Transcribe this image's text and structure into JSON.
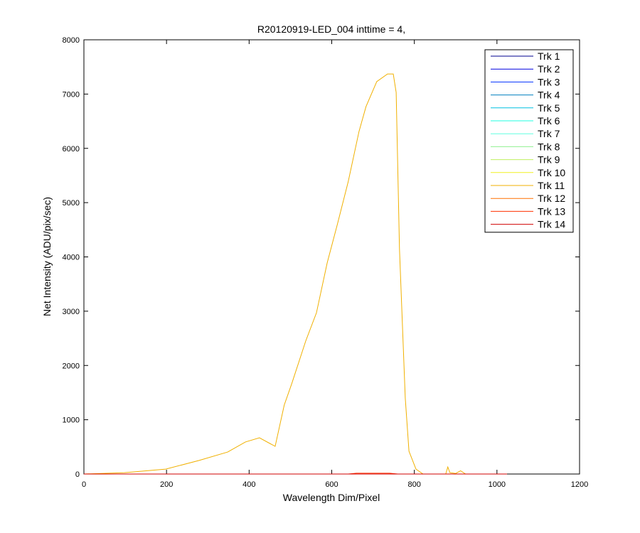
{
  "chart_data": {
    "type": "line",
    "title": "R20120919-LED_004 inttime = 4,",
    "x_label": "Wavelength Dim/Pixel",
    "y_label": "Net Intensity (ADU/pix/sec)",
    "xlim": [
      0,
      1200
    ],
    "ylim": [
      0,
      8000
    ],
    "xticks": [
      0,
      200,
      400,
      600,
      800,
      1000,
      1200
    ],
    "yticks": [
      0,
      1000,
      2000,
      3000,
      4000,
      5000,
      6000,
      7000,
      8000
    ],
    "legend_position": "upper-right",
    "series": [
      {
        "name": "Trk 1",
        "color": "#00008f",
        "x": [
          0,
          1024
        ],
        "values": [
          0,
          0
        ]
      },
      {
        "name": "Trk 2",
        "color": "#0000df",
        "x": [
          0,
          1024
        ],
        "values": [
          0,
          0
        ]
      },
      {
        "name": "Trk 3",
        "color": "#0030ff",
        "x": [
          0,
          1024
        ],
        "values": [
          0,
          0
        ]
      },
      {
        "name": "Trk 4",
        "color": "#0080c0",
        "x": [
          0,
          1024
        ],
        "values": [
          0,
          0
        ]
      },
      {
        "name": "Trk 5",
        "color": "#00c0e0",
        "x": [
          0,
          1024
        ],
        "values": [
          0,
          0
        ]
      },
      {
        "name": "Trk 6",
        "color": "#20ffe0",
        "x": [
          0,
          1024
        ],
        "values": [
          0,
          0
        ]
      },
      {
        "name": "Trk 7",
        "color": "#60ffe0",
        "x": [
          0,
          1024
        ],
        "values": [
          0,
          0
        ]
      },
      {
        "name": "Trk 8",
        "color": "#90f090",
        "x": [
          0,
          1024
        ],
        "values": [
          0,
          0
        ]
      },
      {
        "name": "Trk 9",
        "color": "#c0f060",
        "x": [
          0,
          1024
        ],
        "values": [
          0,
          0
        ]
      },
      {
        "name": "Trk 10",
        "color": "#f0f020",
        "x": [
          0,
          1024
        ],
        "values": [
          0,
          0
        ]
      },
      {
        "name": "Trk 11",
        "color": "#f0b000",
        "x": [
          0,
          98,
          198,
          279,
          348,
          391,
          425,
          463,
          485,
          503,
          537,
          563,
          589,
          614,
          640,
          666,
          683,
          709,
          735,
          749,
          756,
          764,
          778,
          787,
          804,
          821,
          876,
          881,
          886,
          900,
          912,
          924,
          1024
        ],
        "values": [
          0,
          25,
          90,
          250,
          405,
          590,
          667,
          510,
          1270,
          1660,
          2450,
          2970,
          3890,
          4610,
          5390,
          6310,
          6770,
          7230,
          7370,
          7370,
          7030,
          4150,
          1400,
          420,
          90,
          0,
          0,
          130,
          25,
          10,
          60,
          0,
          0
        ]
      },
      {
        "name": "Trk 12",
        "color": "#ff7000",
        "x": [
          0,
          1024
        ],
        "values": [
          0,
          0
        ]
      },
      {
        "name": "Trk 13",
        "color": "#ff3000",
        "x": [
          0,
          640,
          660,
          740,
          760,
          1024
        ],
        "values": [
          0,
          0,
          15,
          15,
          0,
          0
        ]
      },
      {
        "name": "Trk 14",
        "color": "#d00000",
        "x": [
          0,
          1024
        ],
        "values": [
          0,
          0
        ]
      }
    ]
  }
}
